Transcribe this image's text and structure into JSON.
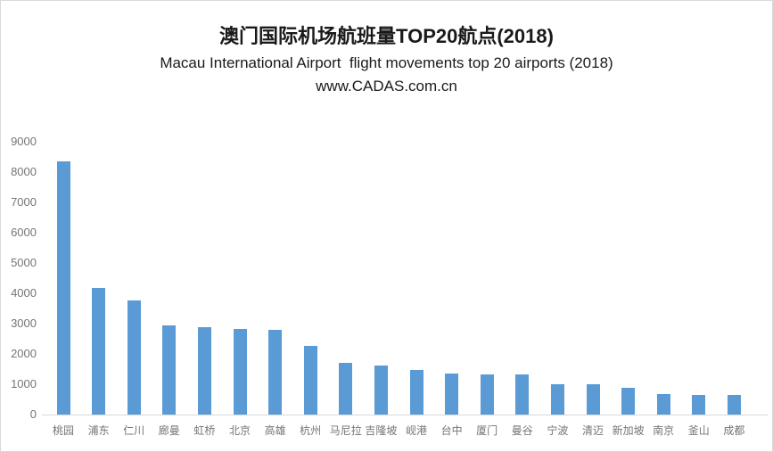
{
  "chart_data": {
    "type": "bar",
    "title": "澳门国际机场航班量TOP20航点(2018)",
    "subtitle": "Macau International Airport  flight movements top 20 airports (2018)",
    "source_watermark": "www.CADAS.com.cn",
    "categories": [
      "桃园",
      "浦东",
      "仁川",
      "廊曼",
      "虹桥",
      "北京",
      "高雄",
      "杭州",
      "马尼拉",
      "吉隆坡",
      "岘港",
      "台中",
      "厦门",
      "曼谷",
      "宁波",
      "清迈",
      "新加坡",
      "南京",
      "釜山",
      "成都"
    ],
    "values": [
      8360,
      4165,
      3775,
      2950,
      2870,
      2820,
      2790,
      2265,
      1715,
      1620,
      1470,
      1350,
      1320,
      1315,
      1010,
      1000,
      880,
      665,
      650,
      640
    ],
    "ylim": [
      0,
      9000
    ],
    "yticks": [
      0,
      1000,
      2000,
      3000,
      4000,
      5000,
      6000,
      7000,
      8000,
      9000
    ],
    "xlabel": "",
    "ylabel": "",
    "grid": false,
    "legend": false,
    "bar_color": "#5B9BD5",
    "axis_line_color": "#D9D9D9",
    "tick_label_color": "#757575"
  }
}
